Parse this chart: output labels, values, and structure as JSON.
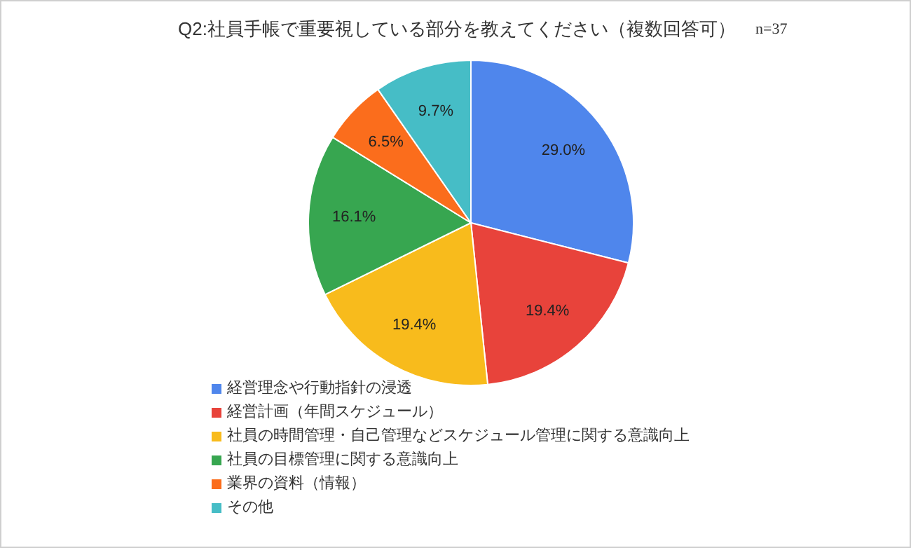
{
  "chart_data": {
    "type": "pie",
    "title": "Q2:社員手帳で重要視している部分を教えてください（複数回答可）",
    "annotations": [
      "n=37"
    ],
    "categories": [
      "経営理念や行動指針の浸透",
      "経営計画（年間スケジュール）",
      "社員の時間管理・自己管理などスケジュール管理に関する意識向上",
      "社員の目標管理に関する意識向上",
      "業界の資料（情報）",
      "その他"
    ],
    "values": [
      29.0,
      19.4,
      19.4,
      16.1,
      6.5,
      9.7
    ],
    "value_labels": [
      "29.0%",
      "19.4%",
      "19.4%",
      "16.1%",
      "6.5%",
      "9.7%"
    ],
    "colors": [
      "#4f86ec",
      "#e8433b",
      "#f8bb1c",
      "#37a650",
      "#fb6d1c",
      "#46bdc6"
    ],
    "legend": "bottom"
  }
}
